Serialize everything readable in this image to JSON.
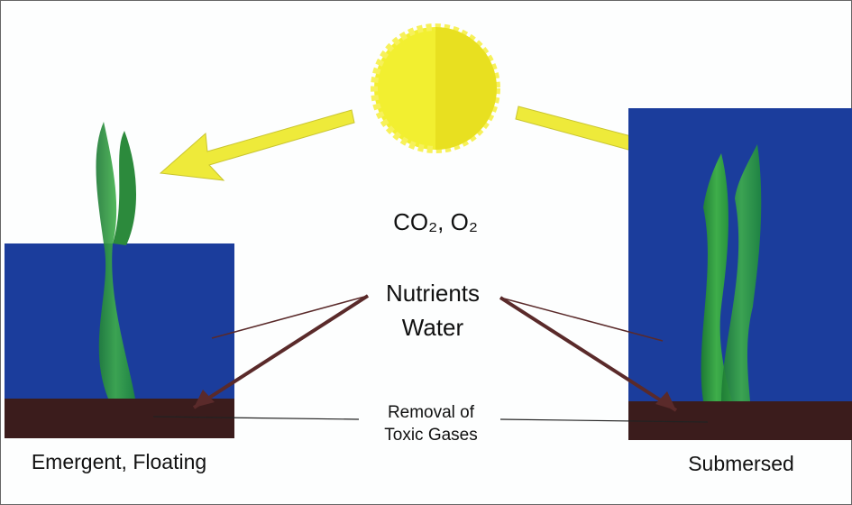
{
  "labels": {
    "gases": "CO₂, O₂",
    "nutrients": "Nutrients",
    "water": "Water",
    "removal_1": "Removal of",
    "removal_2": "Toxic Gases",
    "left_caption": "Emergent, Floating",
    "right_caption": "Submersed"
  }
}
